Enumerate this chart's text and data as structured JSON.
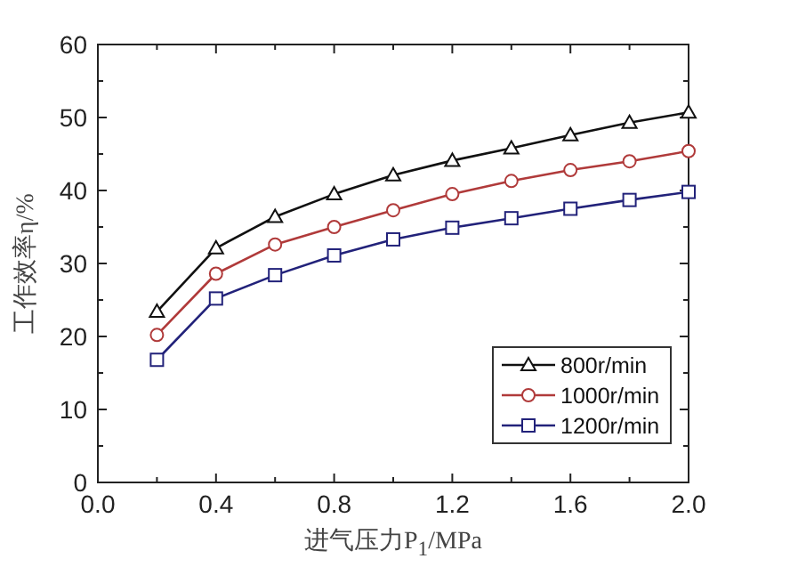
{
  "chart_data": {
    "type": "line",
    "xlabel": "进气压力P$_{1}$/MPa",
    "ylabel": "工作效率η/%",
    "xlim": [
      0,
      2
    ],
    "ylim": [
      0,
      60
    ],
    "xticks": [
      {
        "value": 0,
        "label": "0.0"
      },
      {
        "value": 0.4,
        "label": "0.4"
      },
      {
        "value": 0.8,
        "label": "0.8"
      },
      {
        "value": 1.2,
        "label": "1.2"
      },
      {
        "value": 1.6,
        "label": "1.6"
      },
      {
        "value": 2,
        "label": "2.0"
      }
    ],
    "yticks": [
      0,
      10,
      20,
      30,
      40,
      50,
      60
    ],
    "x": [
      0.2,
      0.4,
      0.6,
      0.8,
      1.0,
      1.2,
      1.4,
      1.6,
      1.8,
      2.0
    ],
    "legend": "bottom right",
    "grid": false,
    "series": [
      {
        "name": "800r/min",
        "color": "#111111",
        "marker": "triangle",
        "values": [
          23.4,
          32.1,
          36.4,
          39.5,
          42.1,
          44.1,
          45.8,
          47.6,
          49.3,
          50.7
        ]
      },
      {
        "name": "1000r/min",
        "color": "#b03a3a",
        "marker": "circle",
        "values": [
          20.2,
          28.6,
          32.6,
          35.0,
          37.3,
          39.5,
          41.3,
          42.8,
          44.0,
          45.4
        ]
      },
      {
        "name": "1200r/min",
        "color": "#22227a",
        "marker": "square",
        "values": [
          16.8,
          25.2,
          28.4,
          31.1,
          33.3,
          34.9,
          36.2,
          37.5,
          38.7,
          39.8
        ]
      }
    ]
  }
}
